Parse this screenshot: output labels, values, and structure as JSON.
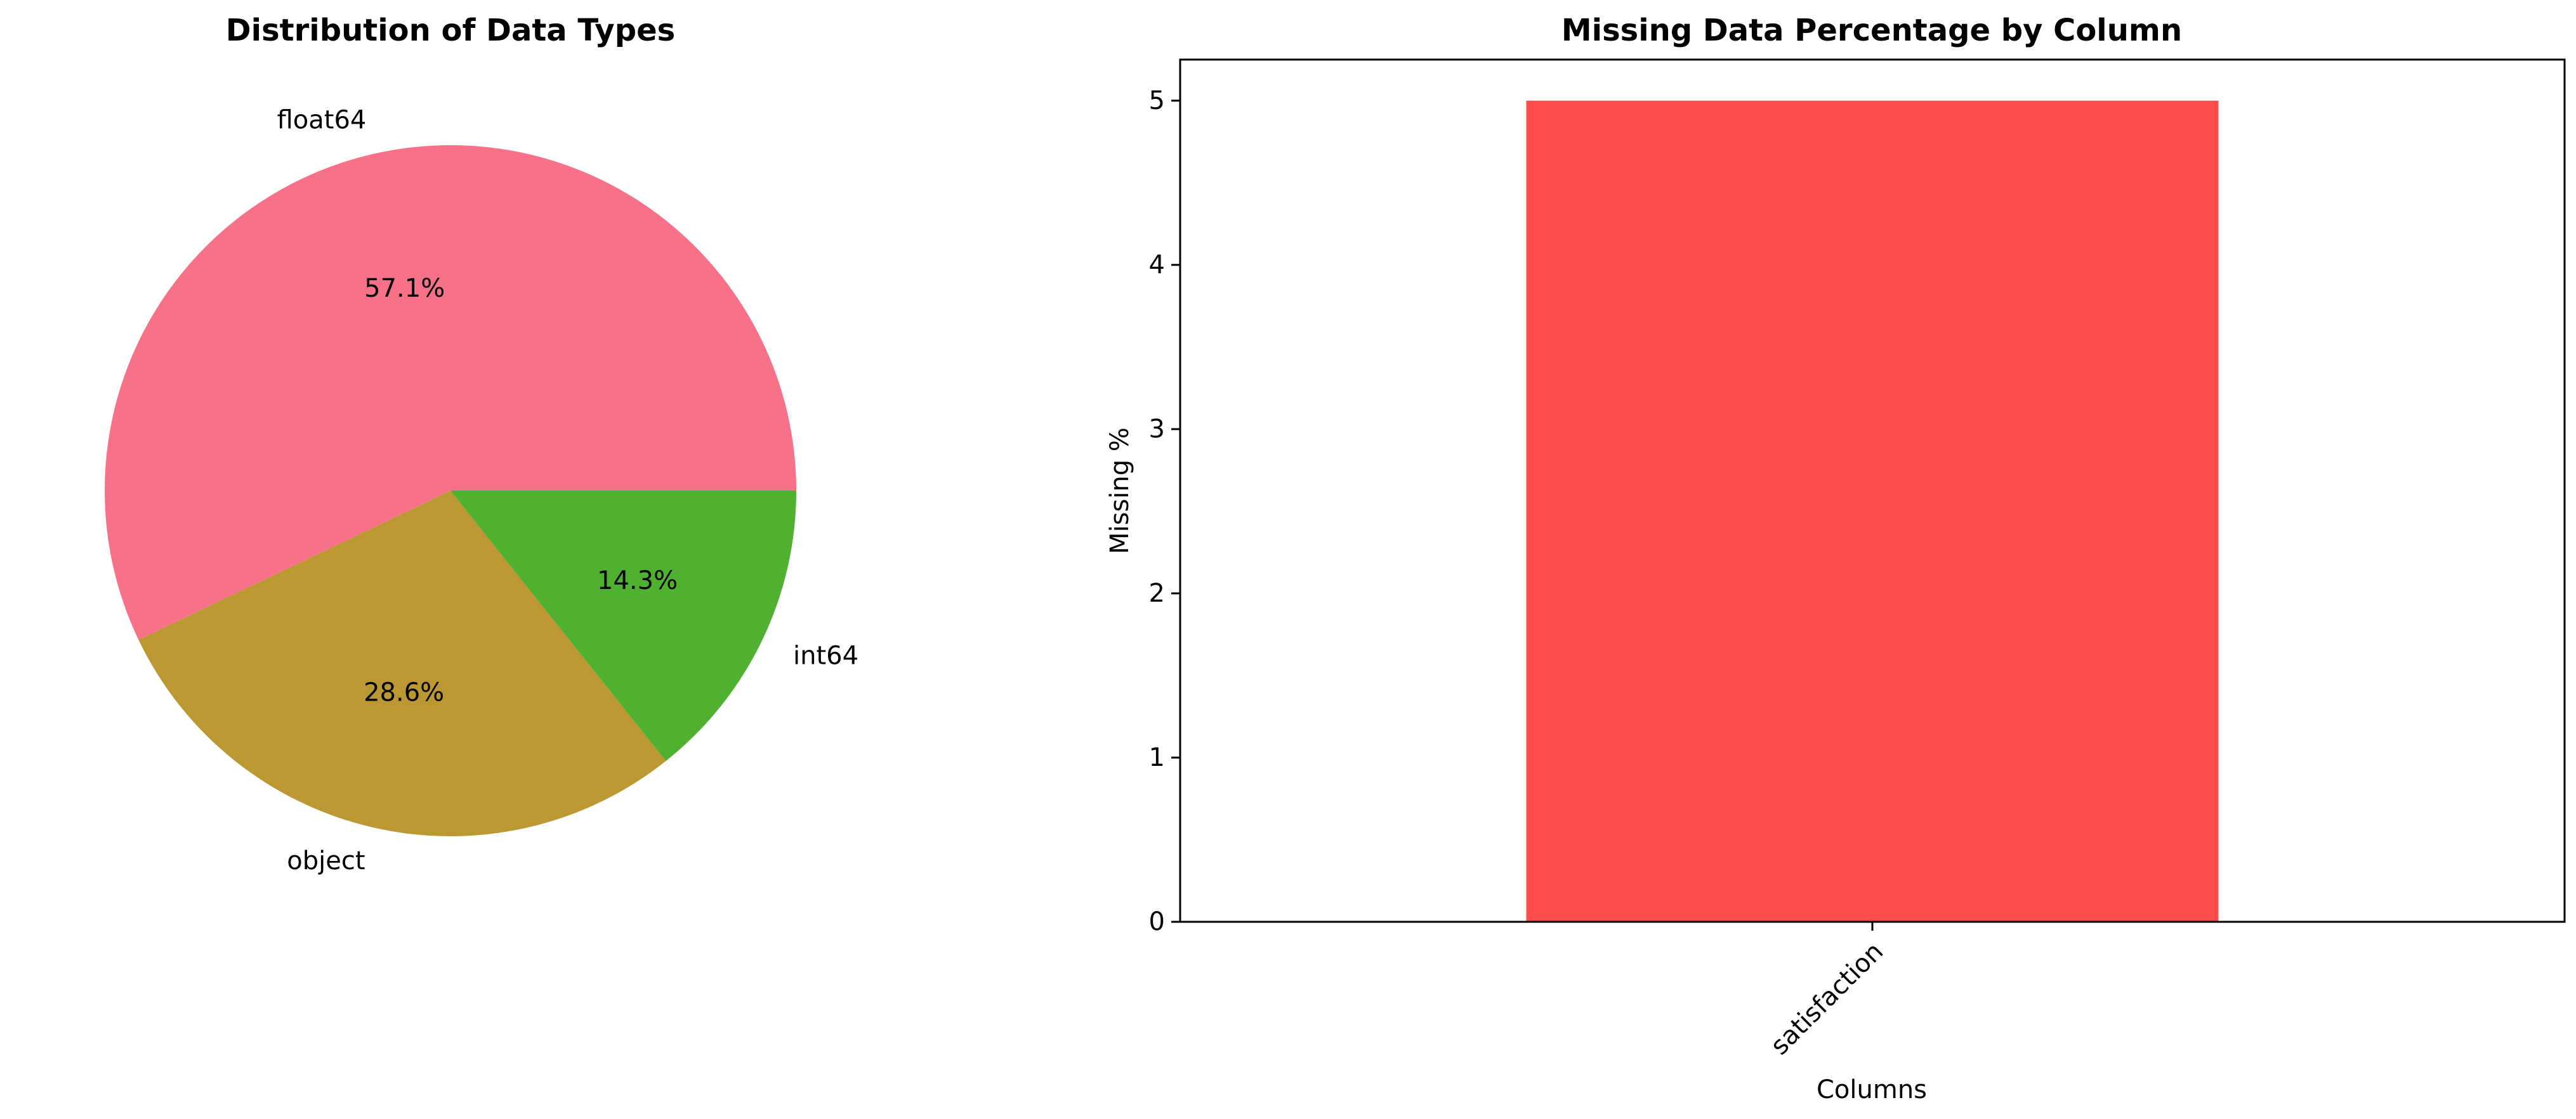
{
  "chart_data": [
    {
      "type": "pie",
      "title": "Distribution of Data Types",
      "slices": [
        {
          "label": "float64",
          "value": 57.1,
          "pct_label": "57.1%",
          "color": "#f77189"
        },
        {
          "label": "object",
          "value": 28.6,
          "pct_label": "28.6%",
          "color": "#bb9832"
        },
        {
          "label": "int64",
          "value": 14.3,
          "pct_label": "14.3%",
          "color": "#50b131"
        }
      ]
    },
    {
      "type": "bar",
      "title": "Missing Data Percentage by Column",
      "xlabel": "Columns",
      "ylabel": "Missing %",
      "categories": [
        "satisfaction"
      ],
      "values": [
        5.0
      ],
      "bar_color": "#ff4d4d",
      "ylim": [
        0,
        5.25
      ],
      "yticks": [
        0,
        1,
        2,
        3,
        4,
        5
      ]
    }
  ]
}
